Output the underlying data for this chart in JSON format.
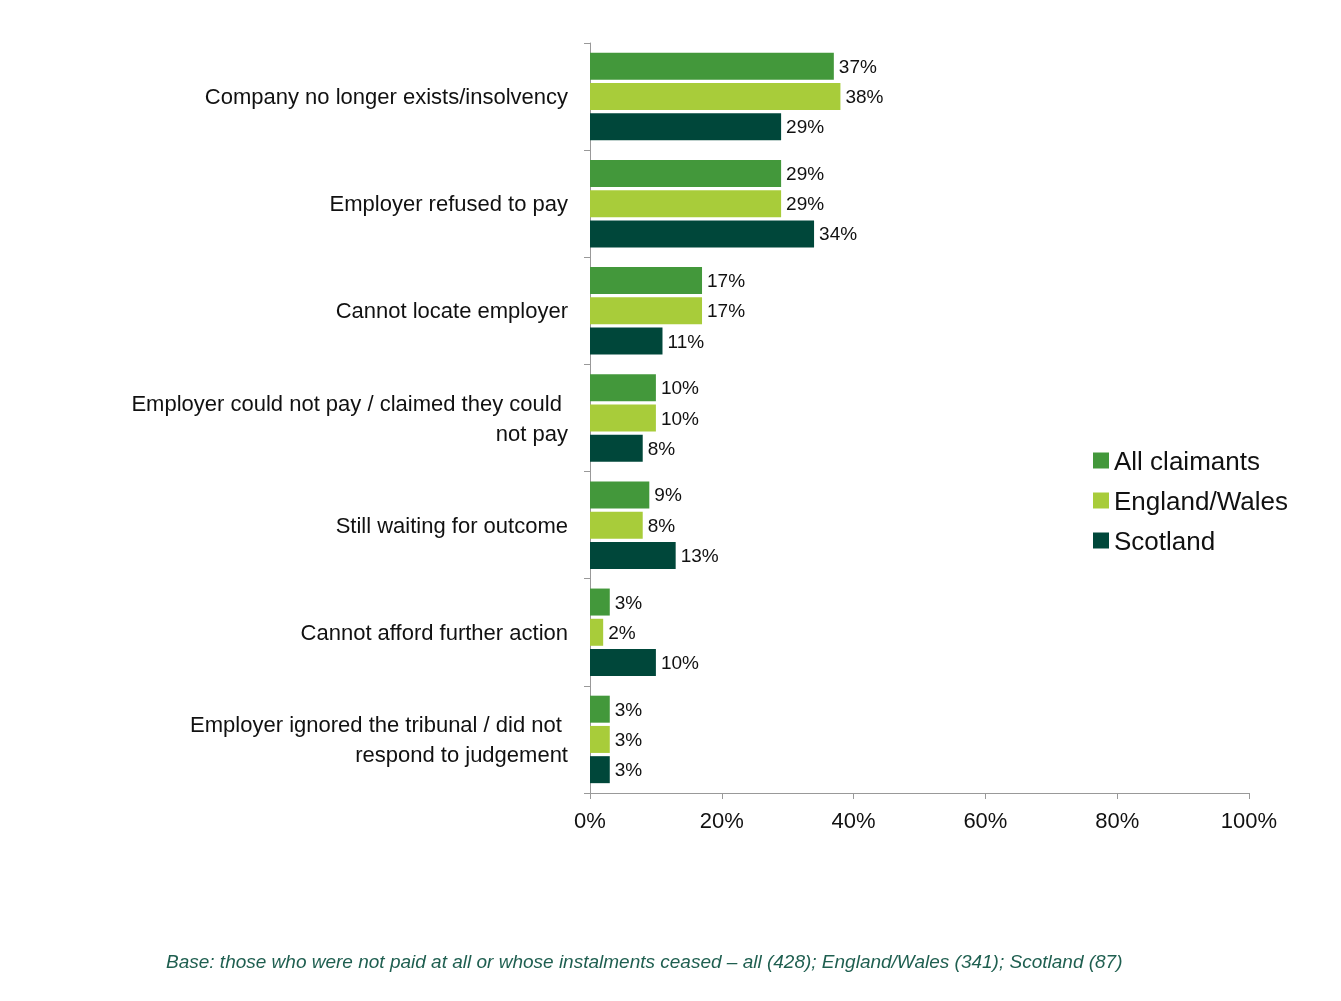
{
  "chart_data": {
    "type": "bar",
    "orientation": "horizontal",
    "categories": [
      "Company no longer exists/insolvency",
      "Employer refused to pay",
      "Cannot locate employer",
      "Employer could not pay / claimed they could not pay",
      "Still waiting for outcome",
      "Cannot afford further action",
      "Employer ignored the tribunal / did not respond to judgement"
    ],
    "series": [
      {
        "name": "All claimants",
        "color": "#43983b",
        "values": [
          37,
          29,
          17,
          10,
          9,
          3,
          3
        ],
        "value_labels": [
          "37%",
          "29%",
          "17%",
          "10%",
          "9%",
          "3%",
          "3%"
        ]
      },
      {
        "name": "England/Wales",
        "color": "#a8cc3a",
        "values": [
          38,
          29,
          17,
          10,
          8,
          2,
          3
        ],
        "value_labels": [
          "38%",
          "29%",
          "17%",
          "10%",
          "8%",
          "2%",
          "3%"
        ]
      },
      {
        "name": "Scotland",
        "color": "#00473a",
        "values": [
          29,
          34,
          11,
          8,
          13,
          10,
          3
        ],
        "value_labels": [
          "29%",
          "34%",
          "11%",
          "8%",
          "13%",
          "10%",
          "3%"
        ]
      }
    ],
    "xlim": [
      0,
      100
    ],
    "xticks": [
      {
        "value": 0,
        "label": "0%"
      },
      {
        "value": 20,
        "label": "20%"
      },
      {
        "value": 40,
        "label": "40%"
      },
      {
        "value": 60,
        "label": "60%"
      },
      {
        "value": 80,
        "label": "80%"
      },
      {
        "value": 100,
        "label": "100%"
      }
    ],
    "grid": false,
    "legend": "right",
    "annotations": [
      "Base: those who were not paid at all or whose instalments ceased – all (428); England/Wales (341); Scotland (87)"
    ]
  }
}
